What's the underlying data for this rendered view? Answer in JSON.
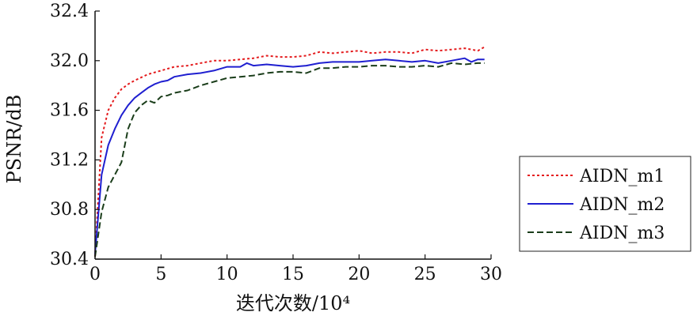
{
  "chart_data": {
    "type": "line",
    "xlabel": "迭代次数/10⁴",
    "ylabel": "PSNR/dB",
    "xlim": [
      0,
      30
    ],
    "ylim": [
      30.4,
      32.4
    ],
    "xticks": [
      0,
      5,
      10,
      15,
      20,
      25,
      30
    ],
    "yticks": [
      30.4,
      30.8,
      31.2,
      31.6,
      32.0,
      32.4
    ],
    "xtick_labels": [
      "0",
      "5",
      "10",
      "15",
      "20",
      "25",
      "30"
    ],
    "ytick_labels": [
      "30.4",
      "30.8",
      "31.2",
      "31.6",
      "32.0",
      "32.4"
    ],
    "grid": false,
    "legend_position": "right",
    "series": [
      {
        "name": "AIDN_m1",
        "color": "#e41a1c",
        "dash": "dotted",
        "x": [
          0,
          0.5,
          1,
          1.5,
          2,
          2.5,
          3,
          4,
          5,
          6,
          7,
          8,
          9,
          10,
          11,
          12,
          13,
          14,
          15,
          16,
          17,
          18,
          19,
          20,
          21,
          22,
          23,
          24,
          25,
          26,
          27,
          28,
          29,
          29.5
        ],
        "values": [
          30.42,
          31.38,
          31.6,
          31.7,
          31.77,
          31.81,
          31.84,
          31.89,
          31.92,
          31.95,
          31.96,
          31.98,
          32.0,
          32.0,
          32.01,
          32.02,
          32.04,
          32.03,
          32.03,
          32.04,
          32.07,
          32.06,
          32.07,
          32.08,
          32.06,
          32.07,
          32.07,
          32.06,
          32.09,
          32.08,
          32.09,
          32.1,
          32.08,
          32.11
        ]
      },
      {
        "name": "AIDN_m2",
        "color": "#1f1fd0",
        "dash": "solid",
        "x": [
          0,
          0.5,
          1,
          1.5,
          2,
          2.5,
          3,
          3.5,
          4,
          4.5,
          5,
          5.5,
          6,
          7,
          8,
          9,
          10,
          11,
          11.5,
          12,
          13,
          14,
          15,
          16,
          17,
          18,
          19,
          20,
          21,
          22,
          23,
          24,
          25,
          26,
          27,
          28,
          28.5,
          29,
          29.5
        ],
        "values": [
          30.44,
          31.08,
          31.32,
          31.45,
          31.56,
          31.64,
          31.7,
          31.74,
          31.78,
          31.81,
          31.83,
          31.84,
          31.87,
          31.89,
          31.9,
          31.92,
          31.95,
          31.95,
          31.98,
          31.96,
          31.97,
          31.96,
          31.95,
          31.96,
          31.98,
          31.99,
          31.99,
          31.99,
          32.0,
          32.01,
          32.0,
          31.99,
          32.0,
          31.98,
          32.0,
          32.02,
          31.99,
          32.01,
          32.01
        ]
      },
      {
        "name": "AIDN_m3",
        "color": "#1a3d1a",
        "dash": "dashed",
        "x": [
          0,
          0.5,
          1,
          1.5,
          2,
          2.5,
          3,
          3.5,
          4,
          4.5,
          5,
          5.5,
          6,
          7,
          8,
          9,
          10,
          11,
          12,
          13,
          14,
          15,
          16,
          17,
          18,
          19,
          20,
          21,
          22,
          23,
          24,
          25,
          26,
          27,
          28,
          29,
          29.5
        ],
        "values": [
          30.42,
          30.78,
          30.98,
          31.08,
          31.18,
          31.45,
          31.58,
          31.64,
          31.68,
          31.66,
          31.71,
          31.72,
          31.74,
          31.76,
          31.8,
          31.83,
          31.86,
          31.87,
          31.88,
          31.9,
          31.91,
          31.91,
          31.9,
          31.94,
          31.94,
          31.95,
          31.95,
          31.96,
          31.96,
          31.95,
          31.95,
          31.96,
          31.95,
          31.98,
          31.97,
          31.98,
          31.98
        ]
      }
    ]
  }
}
